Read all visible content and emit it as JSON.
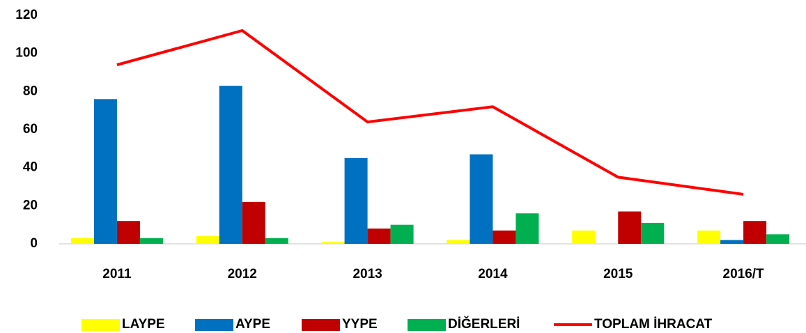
{
  "chart_data": {
    "type": "bar",
    "categories": [
      "2011",
      "2012",
      "2013",
      "2014",
      "2015",
      "2016/T"
    ],
    "series": [
      {
        "name": "LAYPE",
        "color": "#ffff00",
        "values": [
          3,
          4,
          1,
          2,
          7,
          7
        ]
      },
      {
        "name": "AYPE",
        "color": "#0070c0",
        "values": [
          76,
          83,
          45,
          47,
          0,
          2
        ]
      },
      {
        "name": "YYPE",
        "color": "#c00000",
        "values": [
          12,
          22,
          8,
          7,
          17,
          12
        ]
      },
      {
        "name": "DİĞERLERİ",
        "color": "#00b050",
        "values": [
          3,
          3,
          10,
          16,
          11,
          5
        ]
      },
      {
        "name": "TOPLAM İHRACAT",
        "color": "#ff0000",
        "type": "line",
        "values": [
          94,
          112,
          64,
          72,
          35,
          26
        ]
      }
    ],
    "ylim": [
      0,
      120
    ],
    "yticks": [
      0,
      20,
      40,
      60,
      80,
      100,
      120
    ],
    "grid": false,
    "legend": "bottom"
  }
}
